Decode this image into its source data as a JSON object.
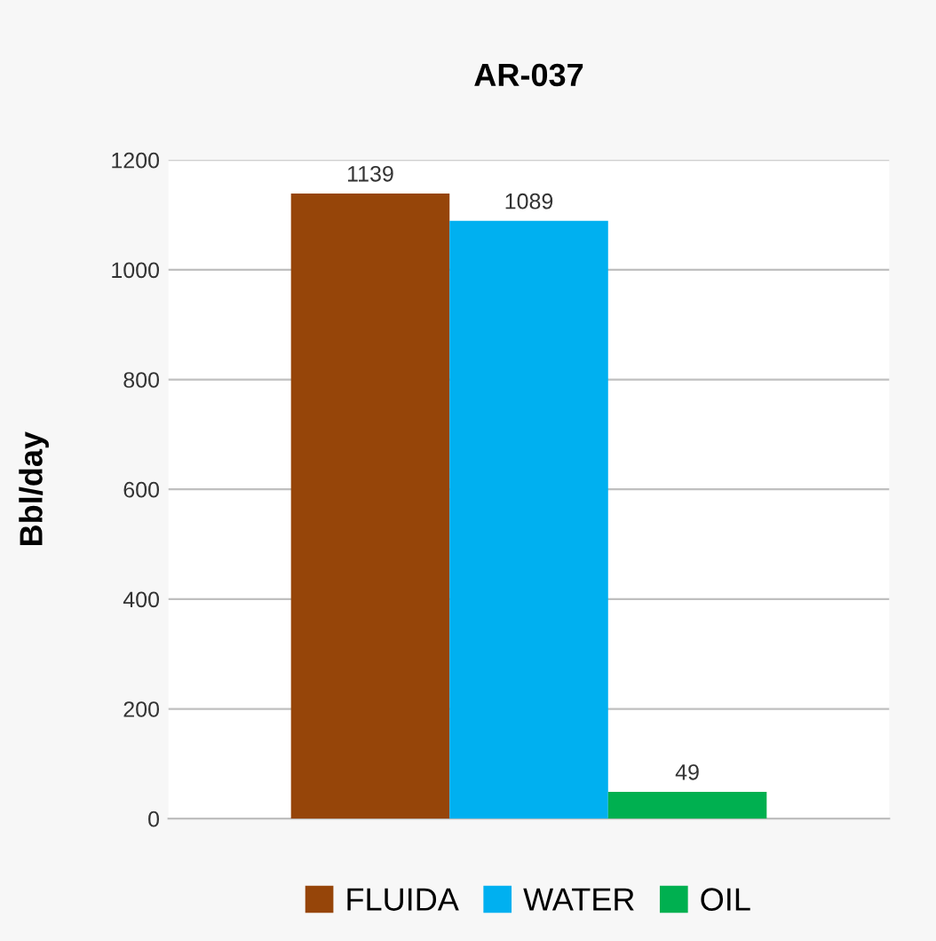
{
  "chart_data": {
    "type": "bar",
    "title": "AR-037",
    "ylabel": "Bbl/day",
    "categories": [
      null
    ],
    "series": [
      {
        "name": "FLUIDA",
        "color": "#964509",
        "values": [
          1139
        ]
      },
      {
        "name": "WATER",
        "color": "#00b0f0",
        "values": [
          1089
        ]
      },
      {
        "name": "OIL",
        "color": "#00b050",
        "values": [
          49
        ]
      }
    ],
    "ylim": [
      0,
      1200
    ],
    "yticks": [
      0,
      200,
      400,
      600,
      800,
      1000,
      1200
    ],
    "grid": "y",
    "legend": "bottom",
    "data_labels": true
  }
}
